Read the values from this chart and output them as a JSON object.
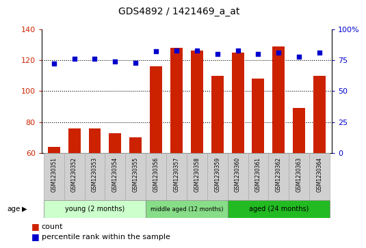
{
  "title": "GDS4892 / 1421469_a_at",
  "samples": [
    "GSM1230351",
    "GSM1230352",
    "GSM1230353",
    "GSM1230354",
    "GSM1230355",
    "GSM1230356",
    "GSM1230357",
    "GSM1230358",
    "GSM1230359",
    "GSM1230360",
    "GSM1230361",
    "GSM1230362",
    "GSM1230363",
    "GSM1230364"
  ],
  "counts": [
    64,
    76,
    76,
    73,
    70,
    116,
    128,
    126,
    110,
    125,
    108,
    129,
    89,
    110
  ],
  "percentiles": [
    72,
    76,
    76,
    74,
    73,
    82,
    83,
    83,
    80,
    83,
    80,
    81,
    78,
    81
  ],
  "bar_color": "#cc2200",
  "dot_color": "#0000cc",
  "ylim_left": [
    60,
    140
  ],
  "ylim_right": [
    0,
    100
  ],
  "yticks_left": [
    60,
    80,
    100,
    120,
    140
  ],
  "yticks_right": [
    0,
    25,
    50,
    75,
    100
  ],
  "ytick_right_labels": [
    "0",
    "25",
    "50",
    "75",
    "100%"
  ],
  "grid_values": [
    80,
    100,
    120
  ],
  "groups": [
    {
      "label": "young (2 months)",
      "start": 0,
      "end": 5,
      "color": "#ccffcc"
    },
    {
      "label": "middle aged (12 months)",
      "start": 5,
      "end": 9,
      "color": "#88dd88"
    },
    {
      "label": "aged (24 months)",
      "start": 9,
      "end": 14,
      "color": "#22bb22"
    }
  ],
  "age_label": "age",
  "legend_count": "count",
  "legend_percentile": "percentile rank within the sample",
  "background_color": "#ffffff",
  "plot_bg": "#ffffff",
  "tick_color_left": "#cc2200",
  "tick_color_right": "#0000cc",
  "cell_color": "#d0d0d0",
  "cell_edge_color": "#aaaaaa"
}
